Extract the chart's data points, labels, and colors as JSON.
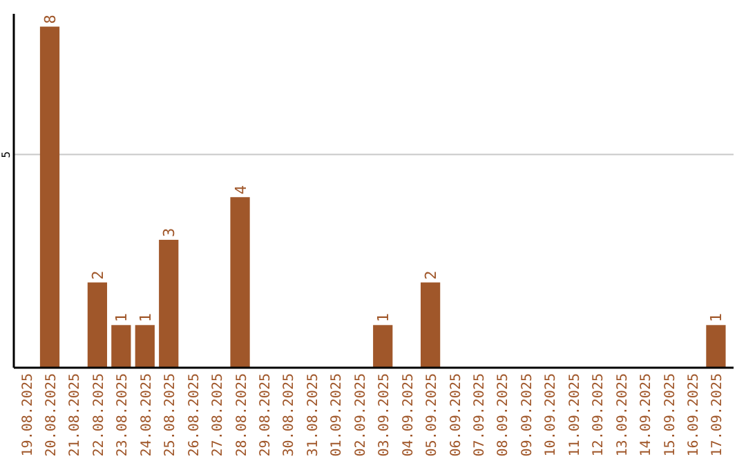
{
  "chart_data": {
    "type": "bar",
    "categories": [
      "19.08.2025",
      "20.08.2025",
      "21.08.2025",
      "22.08.2025",
      "23.08.2025",
      "24.08.2025",
      "25.08.2025",
      "26.08.2025",
      "27.08.2025",
      "28.08.2025",
      "29.08.2025",
      "30.08.2025",
      "31.08.2025",
      "01.09.2025",
      "02.09.2025",
      "03.09.2025",
      "04.09.2025",
      "05.09.2025",
      "06.09.2025",
      "07.09.2025",
      "08.09.2025",
      "09.09.2025",
      "10.09.2025",
      "11.09.2025",
      "12.09.2025",
      "13.09.2025",
      "14.09.2025",
      "15.09.2025",
      "16.09.2025",
      "17.09.2025"
    ],
    "values": [
      0,
      8,
      0,
      2,
      1,
      1,
      3,
      0,
      0,
      4,
      0,
      0,
      0,
      0,
      0,
      1,
      0,
      2,
      0,
      0,
      0,
      0,
      0,
      0,
      0,
      0,
      0,
      0,
      0,
      1
    ],
    "value_labels": [
      null,
      "8",
      null,
      "2",
      "1",
      "1",
      "3",
      null,
      null,
      "4",
      null,
      null,
      null,
      null,
      null,
      "1",
      null,
      "2",
      null,
      null,
      null,
      null,
      null,
      null,
      null,
      null,
      null,
      null,
      null,
      "1"
    ],
    "color": "#a0572a",
    "ylim": [
      0,
      8.3
    ],
    "yticks": [
      5
    ],
    "grid": "y"
  }
}
